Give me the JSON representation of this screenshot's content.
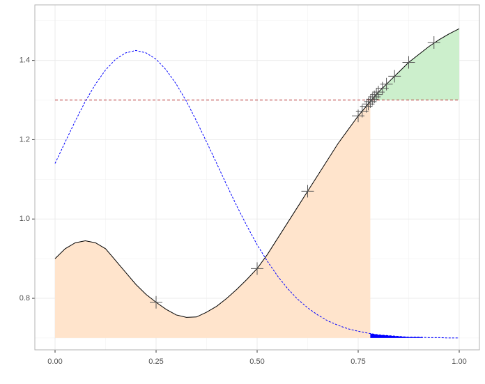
{
  "chart_data": {
    "type": "line",
    "x": [
      0,
      0.025,
      0.05,
      0.075,
      0.1,
      0.125,
      0.15,
      0.175,
      0.2,
      0.225,
      0.25,
      0.275,
      0.3,
      0.325,
      0.35,
      0.375,
      0.4,
      0.425,
      0.45,
      0.475,
      0.5,
      0.525,
      0.55,
      0.575,
      0.6,
      0.625,
      0.65,
      0.675,
      0.7,
      0.725,
      0.75,
      0.775,
      0.8,
      0.825,
      0.85,
      0.875,
      0.9,
      0.925,
      0.95,
      0.975,
      1.0
    ],
    "series": [
      {
        "color": "#000000",
        "dash": false,
        "values": [
          0.9,
          0.925,
          0.94,
          0.945,
          0.94,
          0.925,
          0.895,
          0.865,
          0.835,
          0.81,
          0.79,
          0.772,
          0.758,
          0.752,
          0.753,
          0.765,
          0.78,
          0.8,
          0.823,
          0.848,
          0.875,
          0.91,
          0.95,
          0.99,
          1.03,
          1.07,
          1.11,
          1.15,
          1.19,
          1.225,
          1.26,
          1.29,
          1.32,
          1.345,
          1.37,
          1.395,
          1.415,
          1.435,
          1.452,
          1.467,
          1.48
        ]
      },
      {
        "color": "#0000ff",
        "dash": true,
        "values": [
          1.14,
          1.194,
          1.247,
          1.297,
          1.34,
          1.376,
          1.403,
          1.419,
          1.425,
          1.419,
          1.403,
          1.376,
          1.34,
          1.297,
          1.247,
          1.194,
          1.14,
          1.085,
          1.032,
          0.982,
          0.935,
          0.894,
          0.857,
          0.825,
          0.798,
          0.776,
          0.758,
          0.743,
          0.732,
          0.723,
          0.717,
          0.712,
          0.708,
          0.706,
          0.704,
          0.702,
          0.702,
          0.701,
          0.701,
          0.7,
          0.7
        ]
      }
    ],
    "hline": {
      "value": 1.3,
      "color": "#b22222",
      "x": [
        0,
        1.0
      ]
    },
    "baseline": 0.7,
    "cutoff_x": 0.78,
    "fills": {
      "below": "#ffe4cc",
      "above": "#ccefcc",
      "tail": "#0000ff",
      "tail_x": [
        0.78,
        0.91
      ]
    },
    "markers": {
      "color": "#555555",
      "x": [
        0.25,
        0.5,
        0.625,
        0.75,
        0.76,
        0.77,
        0.775,
        0.78,
        0.785,
        0.79,
        0.795,
        0.8,
        0.81,
        0.82,
        0.84,
        0.875,
        0.9375
      ],
      "y": [
        0.79,
        0.875,
        1.07,
        1.26,
        1.272,
        1.284,
        1.29,
        1.296,
        1.302,
        1.308,
        1.314,
        1.32,
        1.33,
        1.34,
        1.36,
        1.395,
        1.445
      ]
    },
    "xlim": [
      -0.05,
      1.05
    ],
    "ylim": [
      0.67,
      1.54
    ],
    "xticks": [
      {
        "value": 0,
        "label": "0.00"
      },
      0.25,
      {
        "value": 0.5,
        "label": "0.50"
      },
      0.75,
      {
        "value": 1,
        "label": "1.00"
      }
    ],
    "yticks": [
      0.8,
      {
        "value": 1,
        "label": "1.0"
      },
      1.2,
      1.4
    ],
    "grid": true
  }
}
